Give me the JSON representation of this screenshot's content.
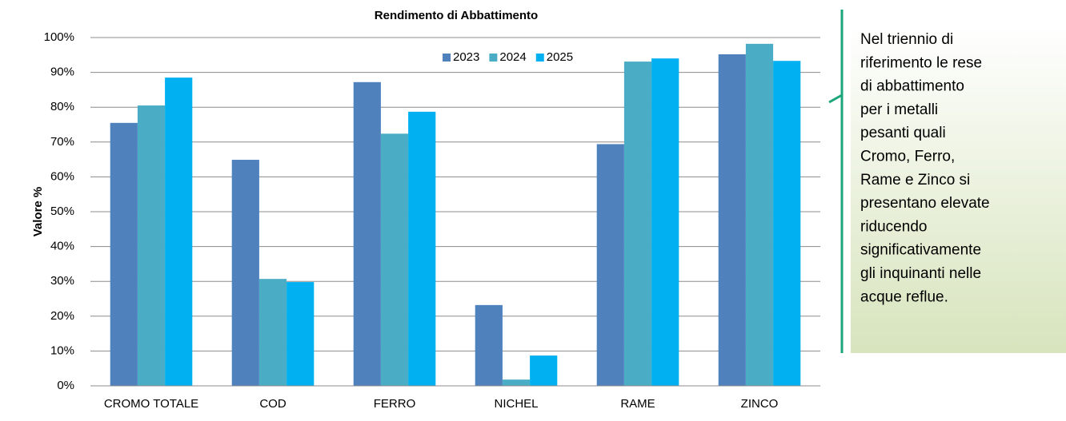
{
  "chart_data": {
    "type": "bar",
    "title": "Rendimento di Abbattimento",
    "ylabel": "Valore %",
    "categories": [
      "CROMO TOTALE",
      "COD",
      "FERRO",
      "NICHEL",
      "RAME",
      "ZINCO"
    ],
    "series": [
      {
        "name": "2023",
        "color": "#4f81bd",
        "values": [
          75.5,
          64.9,
          87.2,
          23.2,
          69.4,
          95.2
        ]
      },
      {
        "name": "2024",
        "color": "#4bacc6",
        "values": [
          80.5,
          30.7,
          72.4,
          1.8,
          93.1,
          98.2
        ]
      },
      {
        "name": "2025",
        "color": "#00b0f0",
        "values": [
          88.5,
          29.8,
          78.7,
          8.7,
          94.0,
          93.3
        ]
      }
    ],
    "ylim": [
      0,
      100
    ],
    "yticks": [
      {
        "value": 0,
        "label": "0%"
      },
      {
        "value": 10,
        "label": "10%"
      },
      {
        "value": 20,
        "label": "20%"
      },
      {
        "value": 30,
        "label": "30%"
      },
      {
        "value": 40,
        "label": "40%"
      },
      {
        "value": 50,
        "label": "50%"
      },
      {
        "value": 60,
        "label": "60%"
      },
      {
        "value": 70,
        "label": "70%"
      },
      {
        "value": 80,
        "label": "80%"
      },
      {
        "value": 90,
        "label": "90%"
      },
      {
        "value": 100,
        "label": "100%"
      }
    ],
    "grid": true,
    "legend": "top"
  },
  "note": {
    "lines": [
      "Nel triennio di",
      "riferimento le rese",
      "di abbattimento",
      "per i metalli",
      "pesanti quali",
      "Cromo, Ferro,",
      "Rame e Zinco si",
      "presentano elevate",
      "riducendo",
      "significativamente",
      "gli inquinanti nelle",
      "acque reflue."
    ]
  }
}
